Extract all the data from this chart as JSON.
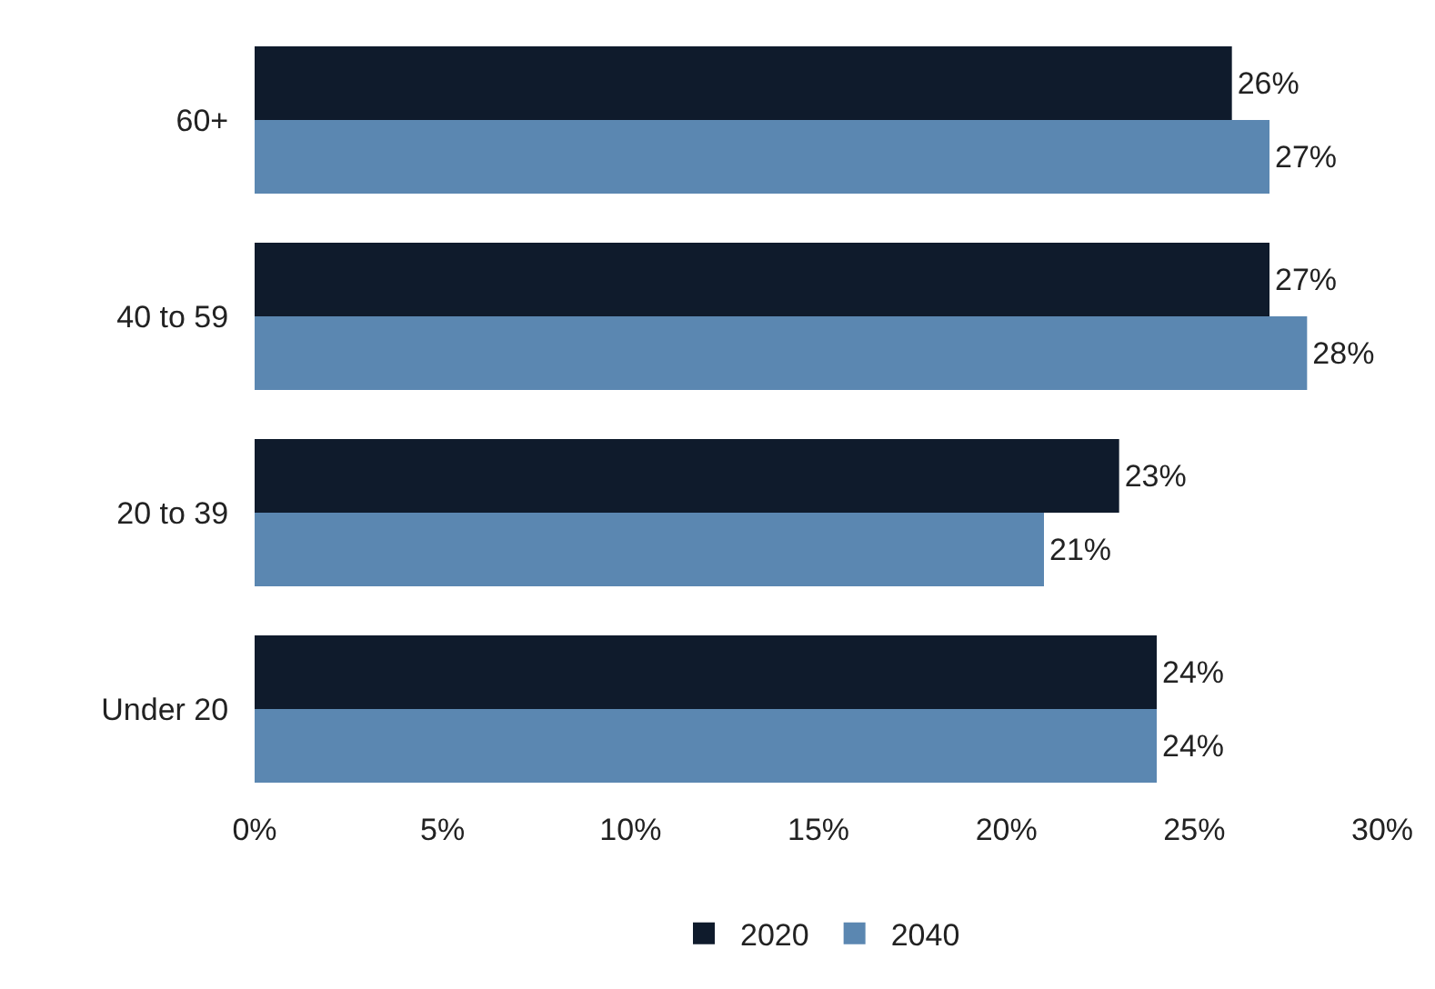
{
  "chart_data": {
    "type": "bar",
    "orientation": "horizontal",
    "categories": [
      "60+",
      "40 to 59",
      "20 to 39",
      "Under 20"
    ],
    "series": [
      {
        "name": "2020",
        "color": "#0f1b2c",
        "values": [
          26,
          27,
          23,
          24
        ],
        "value_labels": [
          "26%",
          "27%",
          "23%",
          "24%"
        ]
      },
      {
        "name": "2040",
        "color": "#5b87b1",
        "values": [
          27,
          28,
          21,
          24
        ],
        "value_labels": [
          "27%",
          "28%",
          "21%",
          "24%"
        ]
      }
    ],
    "xlim": [
      0,
      30
    ],
    "xticks": [
      {
        "value": 0,
        "label": "0%"
      },
      {
        "value": 5,
        "label": "5%"
      },
      {
        "value": 10,
        "label": "10%"
      },
      {
        "value": 15,
        "label": "15%"
      },
      {
        "value": 20,
        "label": "20%"
      },
      {
        "value": 25,
        "label": "25%"
      },
      {
        "value": 30,
        "label": "30%"
      }
    ],
    "grid": false,
    "legend": "bottom"
  }
}
